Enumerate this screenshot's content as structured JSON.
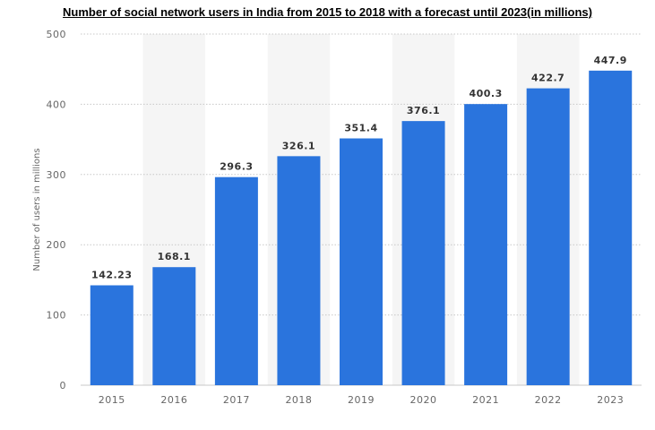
{
  "chart_data": {
    "type": "bar",
    "title": "Number of social network users in India from 2015 to 2018 with a forecast until 2023(in millions)",
    "xlabel": "",
    "ylabel": "Number of users in millions",
    "categories": [
      "2015",
      "2016",
      "2017",
      "2018",
      "2019",
      "2020",
      "2021",
      "2022",
      "2023"
    ],
    "values": [
      142.23,
      168.1,
      296.3,
      326.1,
      351.4,
      376.1,
      400.3,
      422.7,
      447.9
    ],
    "value_labels": [
      "142.23",
      "168.1",
      "296.3",
      "326.1",
      "351.4",
      "376.1",
      "400.3",
      "422.7",
      "447.9"
    ],
    "ylim": [
      0,
      500
    ],
    "yticks": [
      "0",
      "100",
      "200",
      "300",
      "400",
      "500"
    ],
    "grid": true,
    "alternating_bands": true,
    "legend": "none",
    "bar_color": "#2a74dd",
    "band_color": "#f5f5f5",
    "grid_color": "#c8c8c8"
  }
}
